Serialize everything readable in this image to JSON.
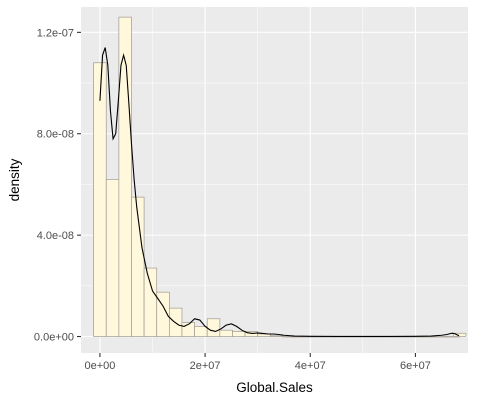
{
  "chart_data": {
    "type": "histogram",
    "title": "",
    "xlabel": "Global.Sales",
    "ylabel": "density",
    "xlim": [
      -3600000,
      70000000
    ],
    "ylim": [
      -6.5e-09,
      1.3e-07
    ],
    "x_ticks": [
      0,
      20000000,
      40000000,
      60000000
    ],
    "x_tick_labels": [
      "0e+00",
      "2e+07",
      "4e+07",
      "6e+07"
    ],
    "y_ticks": [
      0,
      4e-08,
      8e-08,
      1.2e-07
    ],
    "y_tick_labels": [
      "0.0e+00",
      "4.0e-08",
      "8.0e-08",
      "1.2e-07"
    ],
    "grid": true,
    "background": "#ebebeb",
    "grid_color": "#ffffff",
    "bar_fill": "#fff8dc",
    "bar_outline": "#a09a90",
    "density_line_color": "#000000",
    "bins": {
      "start": -1200000,
      "width": 2400000,
      "values": [
        1.08e-07,
        6.2e-08,
        1.26e-07,
        5.5e-08,
        2.7e-08,
        1.75e-08,
        1.12e-08,
        5.5e-09,
        4e-09,
        7e-09,
        2.5e-09,
        2e-09,
        2e-09,
        1e-09,
        3e-10,
        0,
        0,
        0,
        0,
        0,
        0,
        0,
        0,
        0,
        0,
        0,
        0,
        0,
        0,
        0,
        0,
        0,
        0,
        0,
        0,
        0,
        0,
        0,
        0,
        0,
        0,
        0,
        0,
        0,
        0,
        0,
        0,
        0,
        0,
        0,
        0,
        0,
        0,
        0,
        0,
        0,
        0,
        0,
        0,
        0,
        0,
        0,
        0,
        0,
        0,
        0,
        0,
        0,
        0,
        0,
        0,
        0,
        0,
        0,
        0,
        0,
        0,
        0,
        0,
        0,
        0,
        0,
        0,
        0,
        0,
        0,
        0,
        0,
        0,
        0,
        0,
        0,
        0,
        0,
        0,
        0,
        0,
        0,
        0,
        0,
        0,
        0,
        0,
        0,
        0,
        0,
        0,
        0,
        0,
        0,
        0,
        0,
        0,
        0,
        0,
        0,
        0,
        0,
        0,
        0,
        0,
        0,
        0
      ],
      "note_last_bin": {
        "x_start": 67200000,
        "value": 1.3e-09
      }
    },
    "density_curve": {
      "x": [
        0,
        500000,
        1000000,
        1500000,
        2000000,
        2500000,
        3000000,
        3500000,
        4000000,
        4500000,
        5000000,
        5500000,
        6000000,
        6500000,
        7000000,
        8000000,
        9000000,
        10000000,
        11000000,
        12000000,
        13000000,
        14000000,
        15000000,
        16000000,
        17000000,
        18000000,
        19000000,
        20000000,
        21000000,
        22000000,
        23000000,
        24000000,
        25000000,
        26000000,
        27000000,
        28000000,
        29000000,
        30000000,
        31000000,
        32000000,
        33000000,
        34000000,
        35000000,
        37000000,
        40000000,
        45000000,
        50000000,
        55000000,
        60000000,
        63000000,
        65000000,
        66000000,
        66500000,
        67000000,
        67500000,
        68000000,
        68300000
      ],
      "y": [
        9.3e-08,
        1.11e-07,
        1.14e-07,
        1.07e-07,
        8.9e-08,
        7.8e-08,
        8e-08,
        9.3e-08,
        1.07e-07,
        1.11e-07,
        1.07e-07,
        9.2e-08,
        7.6e-08,
        6.2e-08,
        5.1e-08,
        3.5e-08,
        2.5e-08,
        1.8e-08,
        1.5e-08,
        1.2e-08,
        8e-09,
        6e-09,
        4.5e-09,
        4e-09,
        5e-09,
        7e-09,
        6.5e-09,
        4e-09,
        2.5e-09,
        2e-09,
        3e-09,
        4.5e-09,
        5e-09,
        4e-09,
        2.5e-09,
        1.5e-09,
        1.2e-09,
        1.4e-09,
        1.2e-09,
        1e-09,
        1e-09,
        8e-10,
        5e-10,
        2e-10,
        1e-10,
        5e-11,
        3e-11,
        3e-11,
        1e-10,
        2e-10,
        5e-10,
        8e-10,
        1.1e-09,
        1.3e-09,
        1.1e-09,
        6e-10,
        3e-10
      ]
    }
  }
}
